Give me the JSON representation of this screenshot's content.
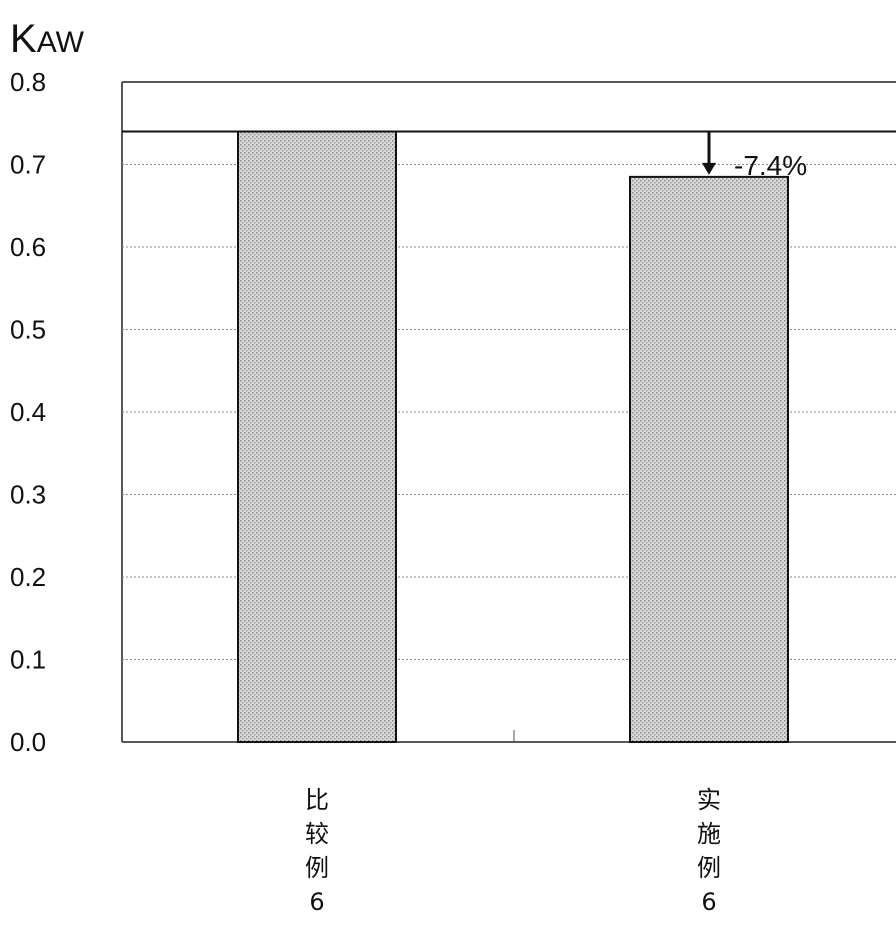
{
  "chart_data": {
    "type": "bar",
    "ylabel": "KAW",
    "ylabel_main": "K",
    "ylabel_sub": "AW",
    "ylim": [
      0,
      0.8
    ],
    "yticks": [
      "0.0",
      "0.1",
      "0.2",
      "0.3",
      "0.4",
      "0.5",
      "0.6",
      "0.7",
      "0.8"
    ],
    "grid": true,
    "categories": [
      "比较例6",
      "实施例6"
    ],
    "category_lines": [
      [
        "比",
        "较",
        "例",
        "6"
      ],
      [
        "实",
        "施",
        "例",
        "6"
      ]
    ],
    "values": [
      0.74,
      0.685
    ],
    "reference_value": 0.74,
    "annotation": "-7.4%",
    "colors": {
      "bar_fill": "#cfcfcf",
      "bar_stroke": "#111111",
      "grid": "#888888"
    }
  }
}
